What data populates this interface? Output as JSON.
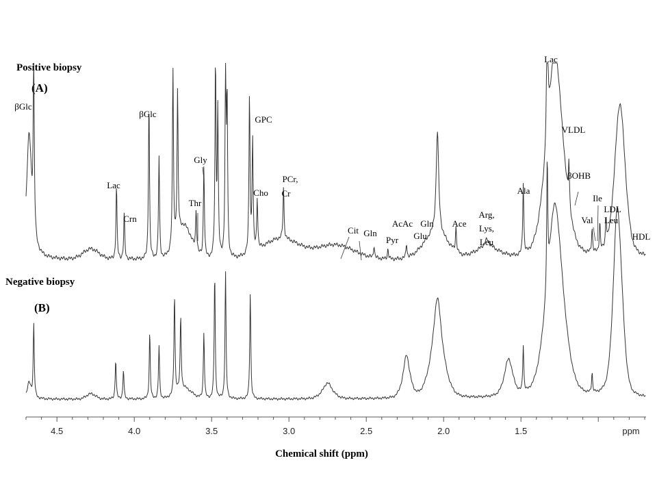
{
  "chart_data": {
    "type": "line",
    "xlabel": "Chemical shift (ppm)",
    "x_unit": "ppm",
    "x_reversed": true,
    "xlim": [
      4.7,
      0.7
    ],
    "ticks": [
      4.5,
      4.0,
      3.5,
      3.0,
      2.5,
      2.0,
      1.5
    ],
    "tick_labels": [
      "4.5",
      "4.0",
      "3.5",
      "3.0",
      "2.5",
      "2.0",
      "1.5"
    ],
    "grid": false,
    "legend": "none",
    "panels": [
      {
        "letter": "(A)",
        "title": "Positive biopsy",
        "baseline": "broad hump rising toward the right with a large broad VLDL/LDL band near 1.3 ppm and HDL near 0.85 ppm",
        "peaks": [
          {
            "ppm": 4.65,
            "height": 0.85,
            "width": 0.004
          },
          {
            "ppm": 4.115,
            "height": 0.36,
            "width": 0.004
          },
          {
            "ppm": 4.065,
            "height": 0.22,
            "width": 0.004
          },
          {
            "ppm": 3.905,
            "height": 0.78,
            "width": 0.004
          },
          {
            "ppm": 3.84,
            "height": 0.5,
            "width": 0.004
          },
          {
            "ppm": 3.75,
            "height": 0.86,
            "width": 0.004
          },
          {
            "ppm": 3.72,
            "height": 0.7,
            "width": 0.004
          },
          {
            "ppm": 3.6,
            "height": 0.2,
            "width": 0.004
          },
          {
            "ppm": 3.55,
            "height": 0.45,
            "width": 0.004
          },
          {
            "ppm": 3.475,
            "height": 0.95,
            "width": 0.004
          },
          {
            "ppm": 3.46,
            "height": 0.7,
            "width": 0.004
          },
          {
            "ppm": 3.41,
            "height": 0.9,
            "width": 0.004
          },
          {
            "ppm": 3.4,
            "height": 0.75,
            "width": 0.004
          },
          {
            "ppm": 3.255,
            "height": 0.78,
            "width": 0.004
          },
          {
            "ppm": 3.235,
            "height": 0.55,
            "width": 0.004
          },
          {
            "ppm": 3.205,
            "height": 0.25,
            "width": 0.004
          },
          {
            "ppm": 3.035,
            "height": 0.25,
            "width": 0.004
          },
          {
            "ppm": 2.45,
            "height": 0.06,
            "width": 0.004
          },
          {
            "ppm": 2.36,
            "height": 0.05,
            "width": 0.004
          },
          {
            "ppm": 2.24,
            "height": 0.07,
            "width": 0.004
          },
          {
            "ppm": 2.04,
            "height": 0.5,
            "width": 0.01
          },
          {
            "ppm": 1.92,
            "height": 0.12,
            "width": 0.004
          },
          {
            "ppm": 1.72,
            "height": 0.04,
            "width": 0.02
          },
          {
            "ppm": 1.485,
            "height": 0.35,
            "width": 0.004
          },
          {
            "ppm": 1.33,
            "height": 0.95,
            "width": 0.004
          },
          {
            "ppm": 1.28,
            "height": 0.45,
            "width": 0.05
          },
          {
            "ppm": 1.19,
            "height": 0.2,
            "width": 0.004
          },
          {
            "ppm": 1.04,
            "height": 0.12,
            "width": 0.004
          },
          {
            "ppm": 0.99,
            "height": 0.14,
            "width": 0.004
          },
          {
            "ppm": 0.95,
            "height": 0.14,
            "width": 0.004
          },
          {
            "ppm": 0.86,
            "height": 0.35,
            "width": 0.04
          }
        ]
      },
      {
        "letter": "(B)",
        "title": "Negative biopsy",
        "baseline": "flat baseline with broad lipoprotein bands near 1.3 and 0.85 ppm",
        "peaks": [
          {
            "ppm": 4.65,
            "height": 0.55,
            "width": 0.004
          },
          {
            "ppm": 4.12,
            "height": 0.3,
            "width": 0.004
          },
          {
            "ppm": 4.07,
            "height": 0.22,
            "width": 0.004
          },
          {
            "ppm": 3.9,
            "height": 0.5,
            "width": 0.004
          },
          {
            "ppm": 3.84,
            "height": 0.4,
            "width": 0.004
          },
          {
            "ppm": 3.74,
            "height": 0.75,
            "width": 0.004
          },
          {
            "ppm": 3.7,
            "height": 0.55,
            "width": 0.004
          },
          {
            "ppm": 3.55,
            "height": 0.5,
            "width": 0.004
          },
          {
            "ppm": 3.48,
            "height": 0.95,
            "width": 0.004
          },
          {
            "ppm": 3.41,
            "height": 0.95,
            "width": 0.004
          },
          {
            "ppm": 3.25,
            "height": 0.8,
            "width": 0.004
          },
          {
            "ppm": 2.75,
            "height": 0.07,
            "width": 0.03
          },
          {
            "ppm": 2.24,
            "height": 0.2,
            "width": 0.02
          },
          {
            "ppm": 2.04,
            "height": 0.5,
            "width": 0.03
          },
          {
            "ppm": 1.58,
            "height": 0.18,
            "width": 0.03
          },
          {
            "ppm": 1.485,
            "height": 0.35,
            "width": 0.004
          },
          {
            "ppm": 1.33,
            "height": 0.95,
            "width": 0.004
          },
          {
            "ppm": 1.28,
            "height": 0.7,
            "width": 0.05
          },
          {
            "ppm": 1.04,
            "height": 0.15,
            "width": 0.004
          },
          {
            "ppm": 0.88,
            "height": 0.7,
            "width": 0.03
          }
        ]
      }
    ],
    "annotations": [
      {
        "text": "βGlc",
        "ppm": 4.66,
        "panel": "A"
      },
      {
        "text": "Lac",
        "ppm": 4.12,
        "panel": "A"
      },
      {
        "text": "Crn",
        "ppm": 4.06,
        "panel": "A"
      },
      {
        "text": "βGlc",
        "ppm": 3.9,
        "panel": "A"
      },
      {
        "text": "Thr",
        "ppm": 3.6,
        "panel": "A"
      },
      {
        "text": "Gly",
        "ppm": 3.55,
        "panel": "A"
      },
      {
        "text": "GPC",
        "ppm": 3.24,
        "panel": "A"
      },
      {
        "text": "Cho",
        "ppm": 3.2,
        "panel": "A"
      },
      {
        "text": "PCr,",
        "ppm": 3.04,
        "panel": "A"
      },
      {
        "text": "Cr",
        "ppm": 3.03,
        "panel": "A"
      },
      {
        "text": "Cit",
        "ppm": 2.68,
        "panel": "A"
      },
      {
        "text": "Gln",
        "ppm": 2.45,
        "panel": "A"
      },
      {
        "text": "Pyr",
        "ppm": 2.36,
        "panel": "A"
      },
      {
        "text": "AcAc",
        "ppm": 2.27,
        "panel": "A"
      },
      {
        "text": "Glu",
        "ppm": 2.12,
        "panel": "A"
      },
      {
        "text": "Gln",
        "ppm": 2.14,
        "panel": "A"
      },
      {
        "text": "Ace",
        "ppm": 1.92,
        "panel": "A"
      },
      {
        "text": "Arg,",
        "ppm": 1.72,
        "panel": "A"
      },
      {
        "text": "Lys,",
        "ppm": 1.72,
        "panel": "A"
      },
      {
        "text": "Leu",
        "ppm": 1.72,
        "panel": "A"
      },
      {
        "text": "Ala",
        "ppm": 1.48,
        "panel": "A"
      },
      {
        "text": "Lac",
        "ppm": 1.33,
        "panel": "A"
      },
      {
        "text": "VLDL",
        "ppm": 1.28,
        "panel": "A"
      },
      {
        "text": "βOHB",
        "ppm": 1.19,
        "panel": "A"
      },
      {
        "text": "Ile",
        "ppm": 1.01,
        "panel": "A"
      },
      {
        "text": "Val",
        "ppm": 1.04,
        "panel": "A"
      },
      {
        "text": "LDL",
        "ppm": 0.93,
        "panel": "A"
      },
      {
        "text": "Leu",
        "ppm": 0.95,
        "panel": "A"
      },
      {
        "text": "HDL",
        "ppm": 0.8,
        "panel": "A"
      }
    ]
  },
  "axis_unit_label": "ppm"
}
